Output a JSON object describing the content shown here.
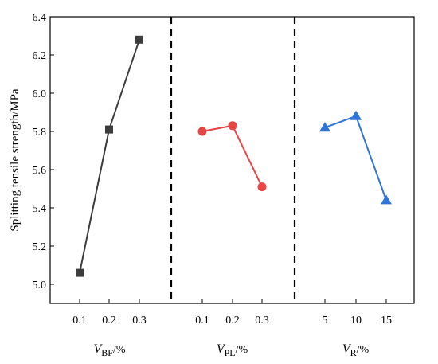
{
  "chart_data": {
    "type": "line",
    "ylabel": "Splitting tensile strength/MPa",
    "ylim": [
      4.9,
      6.4
    ],
    "yticks": [
      "5.0",
      "5.2",
      "5.4",
      "5.6",
      "5.8",
      "6.0",
      "6.2",
      "6.4"
    ],
    "grid": false,
    "legend": "none",
    "groups": [
      {
        "label_var": "V",
        "label_sub": "BF",
        "label_unit": "/%",
        "categories": [
          "0.1",
          "0.2",
          "0.3"
        ],
        "values": [
          5.06,
          5.81,
          6.28
        ],
        "color": "#3c3c3c",
        "marker": "square"
      },
      {
        "label_var": "V",
        "label_sub": "PL",
        "label_unit": "/%",
        "categories": [
          "0.1",
          "0.2",
          "0.3"
        ],
        "values": [
          5.8,
          5.83,
          5.51
        ],
        "color": "#e84545",
        "marker": "circle"
      },
      {
        "label_var": "V",
        "label_sub": "R",
        "label_unit": "/%",
        "categories": [
          "5",
          "10",
          "15"
        ],
        "values": [
          5.82,
          5.88,
          5.44
        ],
        "color": "#2e74d6",
        "marker": "triangle"
      }
    ]
  }
}
